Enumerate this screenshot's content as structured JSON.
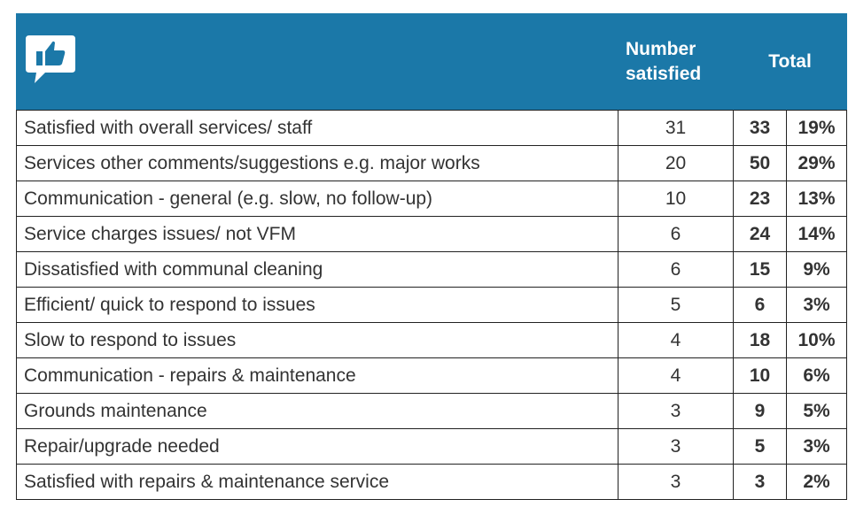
{
  "table": {
    "header": {
      "number": "Number satisfied",
      "total": "Total"
    },
    "rows": [
      [
        "Satisfied with overall services/ staff",
        31,
        33,
        "19%"
      ],
      [
        "Services other comments/suggestions e.g. major works",
        20,
        50,
        "29%"
      ],
      [
        "Communication - general (e.g. slow, no follow-up)",
        10,
        23,
        "13%"
      ],
      [
        "Service charges issues/ not VFM",
        6,
        24,
        "14%"
      ],
      [
        "Dissatisfied with communal cleaning",
        6,
        15,
        "9%"
      ],
      [
        "Efficient/ quick to respond to issues",
        5,
        6,
        "3%"
      ],
      [
        "Slow to respond to issues",
        4,
        18,
        "10%"
      ],
      [
        "Communication - repairs & maintenance",
        4,
        10,
        "6%"
      ],
      [
        "Grounds maintenance",
        3,
        9,
        "5%"
      ],
      [
        "Repair/upgrade needed",
        3,
        5,
        "3%"
      ],
      [
        "Satisfied with repairs & maintenance service",
        3,
        3,
        "2%"
      ]
    ]
  }
}
